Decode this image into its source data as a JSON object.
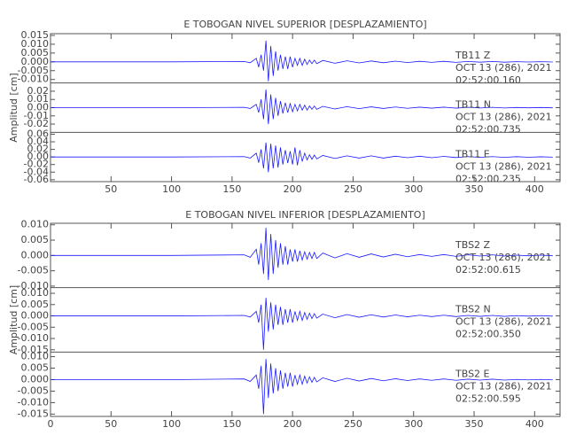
{
  "chart_data": [
    {
      "type": "line",
      "title": "E TOBOGAN NIVEL SUPERIOR [DESPLAZAMIENTO]",
      "ylabel": "Amplitud [cm]",
      "color": "#1a1aff",
      "xlim": [
        0,
        421
      ],
      "xticks": [
        50,
        100,
        150,
        200,
        250,
        300,
        350,
        400
      ],
      "x": [
        0,
        100,
        160,
        165,
        170,
        172,
        174,
        176,
        178,
        180,
        182,
        184,
        186,
        188,
        190,
        192,
        194,
        196,
        198,
        200,
        202,
        204,
        206,
        208,
        210,
        212,
        214,
        216,
        218,
        220,
        225,
        235,
        245,
        255,
        265,
        275,
        285,
        295,
        305,
        315,
        325,
        335,
        345,
        355,
        365,
        375,
        385,
        395,
        405,
        415
      ],
      "panels": [
        {
          "station": "TB11   Z",
          "date": "OCT 13 (286), 2021",
          "time": "02:52:00.160",
          "ylim": [
            -0.012,
            0.016
          ],
          "yticks": [
            {
              "value": -0.01,
              "label": "-0.010"
            },
            -0.005,
            {
              "value": 0,
              "label": "0.000"
            },
            0.005,
            {
              "value": 0.01,
              "label": "0.010"
            },
            0.015
          ],
          "values": [
            0,
            0,
            0.0002,
            -0.0005,
            0.002,
            -0.003,
            0.004,
            -0.005,
            0.012,
            -0.011,
            0.009,
            -0.008,
            0.006,
            -0.005,
            0.004,
            -0.004,
            0.003,
            -0.004,
            0.003,
            -0.003,
            0.002,
            -0.002,
            0.002,
            -0.002,
            0.0015,
            -0.0015,
            0.001,
            -0.001,
            0.001,
            -0.001,
            0.0008,
            -0.0008,
            0.0006,
            -0.0006,
            0.0005,
            -0.0005,
            0.0004,
            -0.0004,
            0.0003,
            -0.0003,
            0.0003,
            -0.0003,
            0.0002,
            -0.0002,
            0.0002,
            -0.0002,
            0.0001,
            -0.0001,
            0.0001,
            -0.0001
          ]
        },
        {
          "station": "TB11   N",
          "date": "OCT 13 (286), 2021",
          "time": "02:52:00.735",
          "ylim": [
            -0.03,
            0.03
          ],
          "yticks": [
            -0.02,
            -0.01,
            {
              "value": 0,
              "label": "0.00"
            },
            0.01,
            0.02
          ],
          "values": [
            0,
            0,
            0.0004,
            -0.001,
            0.004,
            -0.006,
            0.01,
            -0.014,
            0.022,
            -0.02,
            0.016,
            -0.014,
            0.012,
            -0.01,
            0.008,
            -0.007,
            0.006,
            -0.006,
            0.005,
            -0.005,
            0.004,
            -0.004,
            0.004,
            -0.003,
            0.003,
            -0.003,
            0.002,
            -0.002,
            0.002,
            -0.002,
            0.0016,
            -0.0016,
            0.0012,
            -0.0012,
            0.001,
            -0.001,
            0.0008,
            -0.0008,
            0.0006,
            -0.0006,
            0.0006,
            -0.0006,
            0.0004,
            -0.0004,
            0.0004,
            -0.0004,
            0.0002,
            -0.0002,
            0.0002,
            -0.0002
          ]
        },
        {
          "station": "TB11   E",
          "date": "OCT 13 (286), 2021",
          "time": "02:52:00.235",
          "ylim": [
            -0.065,
            0.065
          ],
          "yticks": [
            -0.06,
            -0.04,
            -0.02,
            {
              "value": 0,
              "label": "0.00"
            },
            0.02,
            0.04,
            0.06
          ],
          "values": [
            0,
            0,
            0.001,
            -0.003,
            0.01,
            -0.015,
            0.02,
            -0.03,
            0.038,
            -0.04,
            0.035,
            -0.03,
            0.03,
            -0.028,
            0.025,
            -0.02,
            0.018,
            -0.016,
            0.015,
            -0.02,
            0.025,
            -0.022,
            0.018,
            -0.012,
            0.01,
            -0.008,
            0.006,
            -0.006,
            0.005,
            -0.005,
            0.004,
            -0.004,
            0.003,
            -0.003,
            0.003,
            -0.003,
            0.002,
            -0.002,
            0.002,
            -0.002,
            0.0015,
            -0.0015,
            0.001,
            -0.001,
            0.001,
            -0.001,
            0.0008,
            -0.0008,
            0.0005,
            -0.0005
          ]
        }
      ]
    },
    {
      "type": "line",
      "title": "E TOBOGAN NIVEL INFERIOR [DESPLAZAMIENTO]",
      "ylabel": "Amplitud [cm]",
      "color": "#1a1aff",
      "xlim": [
        0,
        421
      ],
      "xticks": [
        0,
        50,
        100,
        150,
        200,
        250,
        300,
        350,
        400
      ],
      "x": [
        0,
        100,
        160,
        165,
        170,
        172,
        174,
        176,
        178,
        180,
        182,
        184,
        186,
        188,
        190,
        192,
        194,
        196,
        198,
        200,
        202,
        204,
        206,
        208,
        210,
        212,
        214,
        216,
        218,
        220,
        225,
        235,
        245,
        255,
        265,
        275,
        285,
        295,
        305,
        315,
        325,
        335,
        345,
        355,
        365,
        375,
        385,
        395,
        405,
        415
      ],
      "panels": [
        {
          "station": "TBS2   Z",
          "date": "OCT 13 (286), 2021",
          "time": "02:52:00.615",
          "ylim": [
            -0.0105,
            0.0105
          ],
          "yticks": [
            {
              "value": -0.01,
              "label": "-0.010"
            },
            -0.005,
            {
              "value": 0,
              "label": "0.000"
            },
            0.005,
            {
              "value": 0.01,
              "label": "0.010"
            }
          ],
          "values": [
            0,
            0,
            0.0002,
            -0.0006,
            0.002,
            -0.003,
            0.004,
            -0.006,
            0.009,
            -0.008,
            0.007,
            -0.006,
            0.005,
            -0.004,
            0.004,
            -0.003,
            0.003,
            -0.003,
            0.002,
            -0.002,
            0.002,
            -0.002,
            0.0015,
            -0.0015,
            0.0012,
            -0.0012,
            0.001,
            -0.001,
            0.001,
            -0.001,
            0.0008,
            -0.0008,
            0.0006,
            -0.0006,
            0.0005,
            -0.0005,
            0.0004,
            -0.0004,
            0.0003,
            -0.0003,
            0.0003,
            -0.0003,
            0.0002,
            -0.0002,
            0.0002,
            -0.0002,
            0.0001,
            -0.0001,
            0.0001,
            -0.0001
          ]
        },
        {
          "station": "TBS2   N",
          "date": "OCT 13 (286), 2021",
          "time": "02:52:00.350",
          "ylim": [
            -0.016,
            0.0125
          ],
          "yticks": [
            -0.015,
            {
              "value": -0.01,
              "label": "-0.010"
            },
            -0.005,
            {
              "value": 0,
              "label": "0.000"
            },
            0.005,
            {
              "value": 0.01,
              "label": "0.010"
            }
          ],
          "values": [
            0,
            0,
            0.0002,
            -0.0005,
            0.002,
            -0.003,
            0.005,
            -0.015,
            0.008,
            -0.007,
            0.006,
            -0.006,
            0.005,
            -0.004,
            0.004,
            -0.004,
            0.003,
            -0.003,
            0.003,
            -0.003,
            0.002,
            -0.002,
            0.002,
            -0.002,
            0.0015,
            -0.0015,
            0.0012,
            -0.0012,
            0.001,
            -0.001,
            0.0008,
            -0.0008,
            0.0006,
            -0.0006,
            0.0005,
            -0.0005,
            0.0004,
            -0.0004,
            0.0003,
            -0.0003,
            0.0003,
            -0.0003,
            0.0002,
            -0.0002,
            0.0002,
            -0.0002,
            0.0001,
            -0.0001,
            0.0001,
            -0.0001
          ]
        },
        {
          "station": "TBS2   E",
          "date": "OCT 13 (286), 2021",
          "time": "02:52:00.595",
          "ylim": [
            -0.016,
            0.012
          ],
          "yticks": [
            -0.015,
            {
              "value": -0.01,
              "label": "-0.010"
            },
            -0.005,
            {
              "value": 0,
              "label": "0.000"
            },
            0.005,
            {
              "value": 0.01,
              "label": "0.010"
            }
          ],
          "values": [
            0,
            0,
            0.0003,
            -0.0008,
            0.002,
            -0.004,
            0.006,
            -0.015,
            0.009,
            -0.008,
            0.007,
            -0.006,
            0.005,
            -0.005,
            0.004,
            -0.004,
            0.003,
            -0.003,
            0.003,
            -0.003,
            0.002,
            -0.002,
            0.002,
            -0.002,
            0.0015,
            -0.0015,
            0.0012,
            -0.0012,
            0.001,
            -0.001,
            0.0008,
            -0.0008,
            0.0006,
            -0.0006,
            0.0005,
            -0.0005,
            0.0004,
            -0.0004,
            0.0003,
            -0.0003,
            0.0003,
            -0.0003,
            0.0002,
            -0.0002,
            0.0002,
            -0.0002,
            0.0001,
            -0.0001,
            0.0001,
            -0.0001
          ]
        }
      ]
    }
  ]
}
